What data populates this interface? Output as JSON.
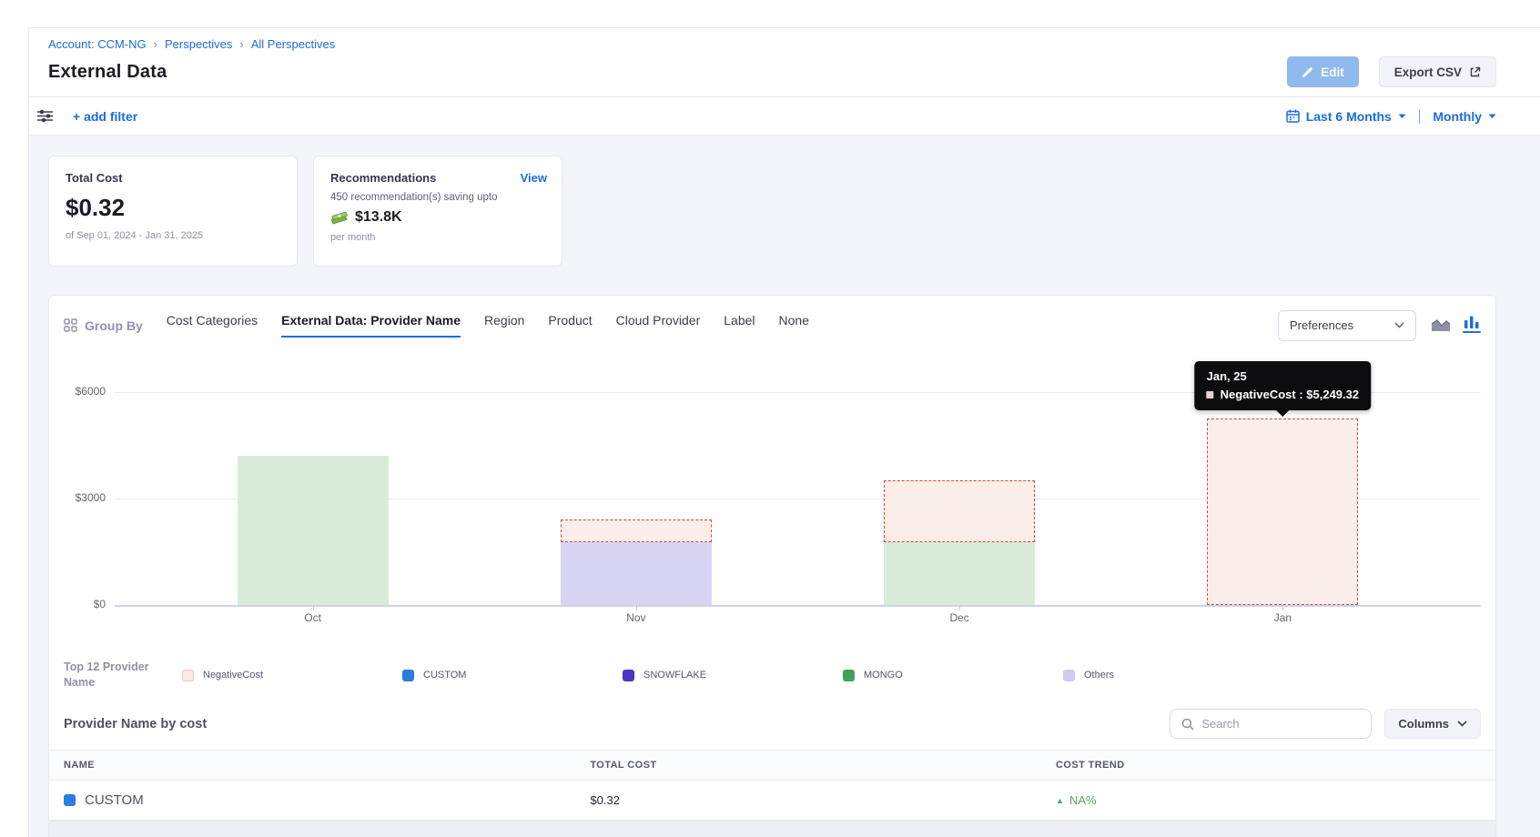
{
  "header": {
    "breadcrumb": {
      "items": [
        "Account: CCM-NG",
        "Perspectives",
        "All Perspectives"
      ],
      "separator": "›"
    },
    "title": "External Data",
    "actions": {
      "edit": "Edit",
      "export": "Export CSV"
    }
  },
  "filter_bar": {
    "add_filter": "+ add filter",
    "date_range": "Last 6 Months",
    "granularity": "Monthly"
  },
  "cards": {
    "total_cost": {
      "label": "Total Cost",
      "value": "$0.32",
      "period": "of Sep 01, 2024 - Jan 31, 2025"
    },
    "recommendations": {
      "label": "Recommendations",
      "view": "View",
      "line1": "450 recommendation(s) saving upto",
      "amount": "$13.8K",
      "line2": "per month"
    }
  },
  "group_by": {
    "label": "Group By",
    "tabs": [
      "Cost Categories",
      "External Data: Provider Name",
      "Region",
      "Product",
      "Cloud Provider",
      "Label",
      "None"
    ],
    "active_tab": "External Data: Provider Name",
    "preferences": "Preferences"
  },
  "chart_data": {
    "type": "bar",
    "stacked": true,
    "title": "",
    "xlabel": "",
    "ylabel": "",
    "categories": [
      "Oct",
      "Nov",
      "Dec",
      "Jan"
    ],
    "series": [
      {
        "name": "CUSTOM",
        "legend_color": "#2a7de2",
        "bar_color": "#2a7de2",
        "values": [
          0,
          0,
          0,
          0
        ]
      },
      {
        "name": "SNOWFLAKE",
        "legend_color": "#4c35c8",
        "bar_color": "#d8d4f4",
        "values": [
          0,
          1770,
          0,
          0
        ]
      },
      {
        "name": "MONGO",
        "legend_color": "#3aa357",
        "bar_color": "#d9ecda",
        "values": [
          4200,
          0,
          1770,
          0
        ]
      },
      {
        "name": "NegativeCost",
        "legend_color": "#fbe9e7",
        "bar_color": "#fbedea",
        "border_color": "#cd4a3d",
        "dashed": true,
        "values": [
          0,
          640,
          1740,
          5249.32
        ]
      }
    ],
    "ylim": [
      0,
      6000
    ],
    "yticks": [
      "$6000",
      "$3000",
      "$0"
    ],
    "grid": true,
    "legend_position": "bottom",
    "tooltip": {
      "title": "Jan, 25",
      "series": "NegativeCost",
      "value": "$5,249.32",
      "text": "NegativeCost : $5,249.32"
    }
  },
  "legend": {
    "title_line1": "Top 12 Provider",
    "title_line2": "Name",
    "items": [
      {
        "label": "NegativeCost",
        "color": "#fbe9e7",
        "border": "#eac6c1"
      },
      {
        "label": "CUSTOM",
        "color": "#2a7de2",
        "border": "#2a7de2"
      },
      {
        "label": "SNOWFLAKE",
        "color": "#4c35c8",
        "border": "#4c35c8"
      },
      {
        "label": "MONGO",
        "color": "#3aa357",
        "border": "#3aa357"
      },
      {
        "label": "Others",
        "color": "#cfc9f3",
        "border": "#cfc9f3"
      }
    ]
  },
  "table": {
    "title": "Provider Name by cost",
    "search_placeholder": "Search",
    "columns_button": "Columns",
    "headers": [
      "NAME",
      "TOTAL COST",
      "COST TREND"
    ],
    "rows": [
      {
        "name": "CUSTOM",
        "swatch_color": "#2a7de2",
        "total_cost": "$0.32",
        "cost_trend": "NA%",
        "trend_direction": "up"
      }
    ]
  },
  "colors": {
    "accent": "#1b6ce3",
    "negative": "#cd4a3d",
    "positive": "#4dab53",
    "page_bg": "#f4f5fa"
  }
}
